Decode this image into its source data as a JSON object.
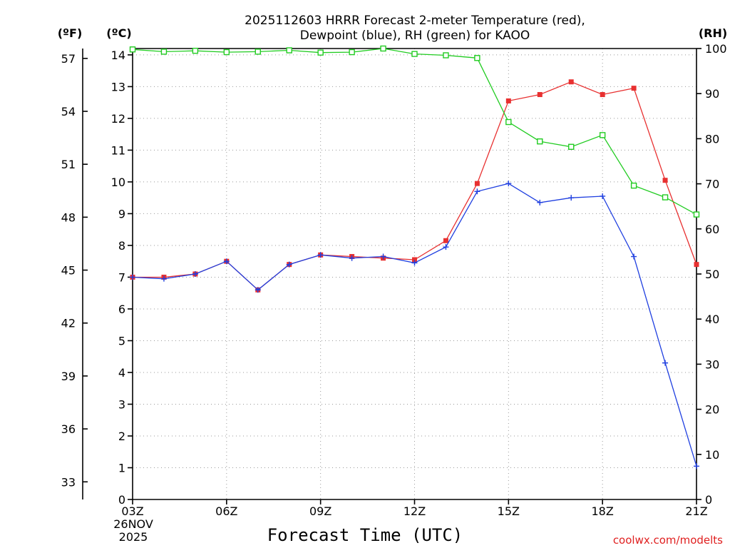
{
  "chart_data": {
    "type": "line",
    "title_line1": "2025112603 HRRR Forecast 2-meter Temperature (red),",
    "title_line2": "Dewpoint (blue), RH (green) for KAOO",
    "xlabel": "Forecast Time (UTC)",
    "credit": "coolwx.com/modelts",
    "unit_labels": {
      "f": "(ºF)",
      "c": "(ºC)",
      "rh": "(RH)"
    },
    "x_ticks": [
      {
        "x": 0,
        "label": "03Z"
      },
      {
        "x": 3,
        "label": "06Z"
      },
      {
        "x": 6,
        "label": "09Z"
      },
      {
        "x": 9,
        "label": "12Z"
      },
      {
        "x": 12,
        "label": "15Z"
      },
      {
        "x": 15,
        "label": "18Z"
      },
      {
        "x": 18,
        "label": "21Z"
      }
    ],
    "date_label_1": "26NOV",
    "date_label_2": "2025",
    "xlim": [
      0,
      18
    ],
    "ylim_c": [
      0,
      14.2
    ],
    "ylim_rh": [
      0,
      100
    ],
    "y_ticks_c": [
      "0",
      "1",
      "2",
      "3",
      "4",
      "5",
      "6",
      "7",
      "8",
      "9",
      "10",
      "11",
      "12",
      "13",
      "14"
    ],
    "y_ticks_f": [
      "33",
      "36",
      "39",
      "42",
      "45",
      "48",
      "51",
      "54",
      "57"
    ],
    "y_ticks_f_values": [
      33,
      36,
      39,
      42,
      45,
      48,
      51,
      54,
      57
    ],
    "y_ticks_rh": [
      "0",
      "10",
      "20",
      "30",
      "40",
      "50",
      "60",
      "70",
      "80",
      "90",
      "100"
    ],
    "series": [
      {
        "name": "Temperature",
        "unit": "C",
        "color": "#e83030",
        "marker": "filled-square",
        "x": [
          0,
          1,
          2,
          3,
          4,
          5,
          6,
          7,
          8,
          9,
          10,
          11,
          12,
          13,
          14,
          15,
          16,
          17,
          18
        ],
        "values": [
          7.0,
          7.0,
          7.1,
          7.5,
          6.6,
          7.4,
          7.7,
          7.65,
          7.6,
          7.55,
          8.15,
          9.95,
          12.55,
          12.75,
          13.15,
          12.75,
          12.95,
          10.05,
          7.4
        ]
      },
      {
        "name": "Dewpoint",
        "unit": "C",
        "color": "#1f3fe0",
        "marker": "plus",
        "x": [
          0,
          1,
          2,
          3,
          4,
          5,
          6,
          7,
          8,
          9,
          10,
          11,
          12,
          13,
          14,
          15,
          16,
          17,
          18
        ],
        "values": [
          7.0,
          6.95,
          7.1,
          7.5,
          6.6,
          7.4,
          7.7,
          7.6,
          7.65,
          7.45,
          7.95,
          9.7,
          9.95,
          9.35,
          9.5,
          9.55,
          7.65,
          4.3,
          1.05
        ]
      },
      {
        "name": "RH",
        "unit": "%",
        "color": "#22cc22",
        "marker": "open-square",
        "x": [
          0,
          1,
          2,
          3,
          4,
          5,
          6,
          7,
          8,
          9,
          10,
          11,
          12,
          13,
          14,
          15,
          16,
          17,
          18
        ],
        "values": [
          99.8,
          99.3,
          99.5,
          99.2,
          99.3,
          99.6,
          99.1,
          99.2,
          100.0,
          98.8,
          98.5,
          97.9,
          83.7,
          79.4,
          78.2,
          80.8,
          69.6,
          67.0,
          63.2
        ]
      }
    ]
  }
}
